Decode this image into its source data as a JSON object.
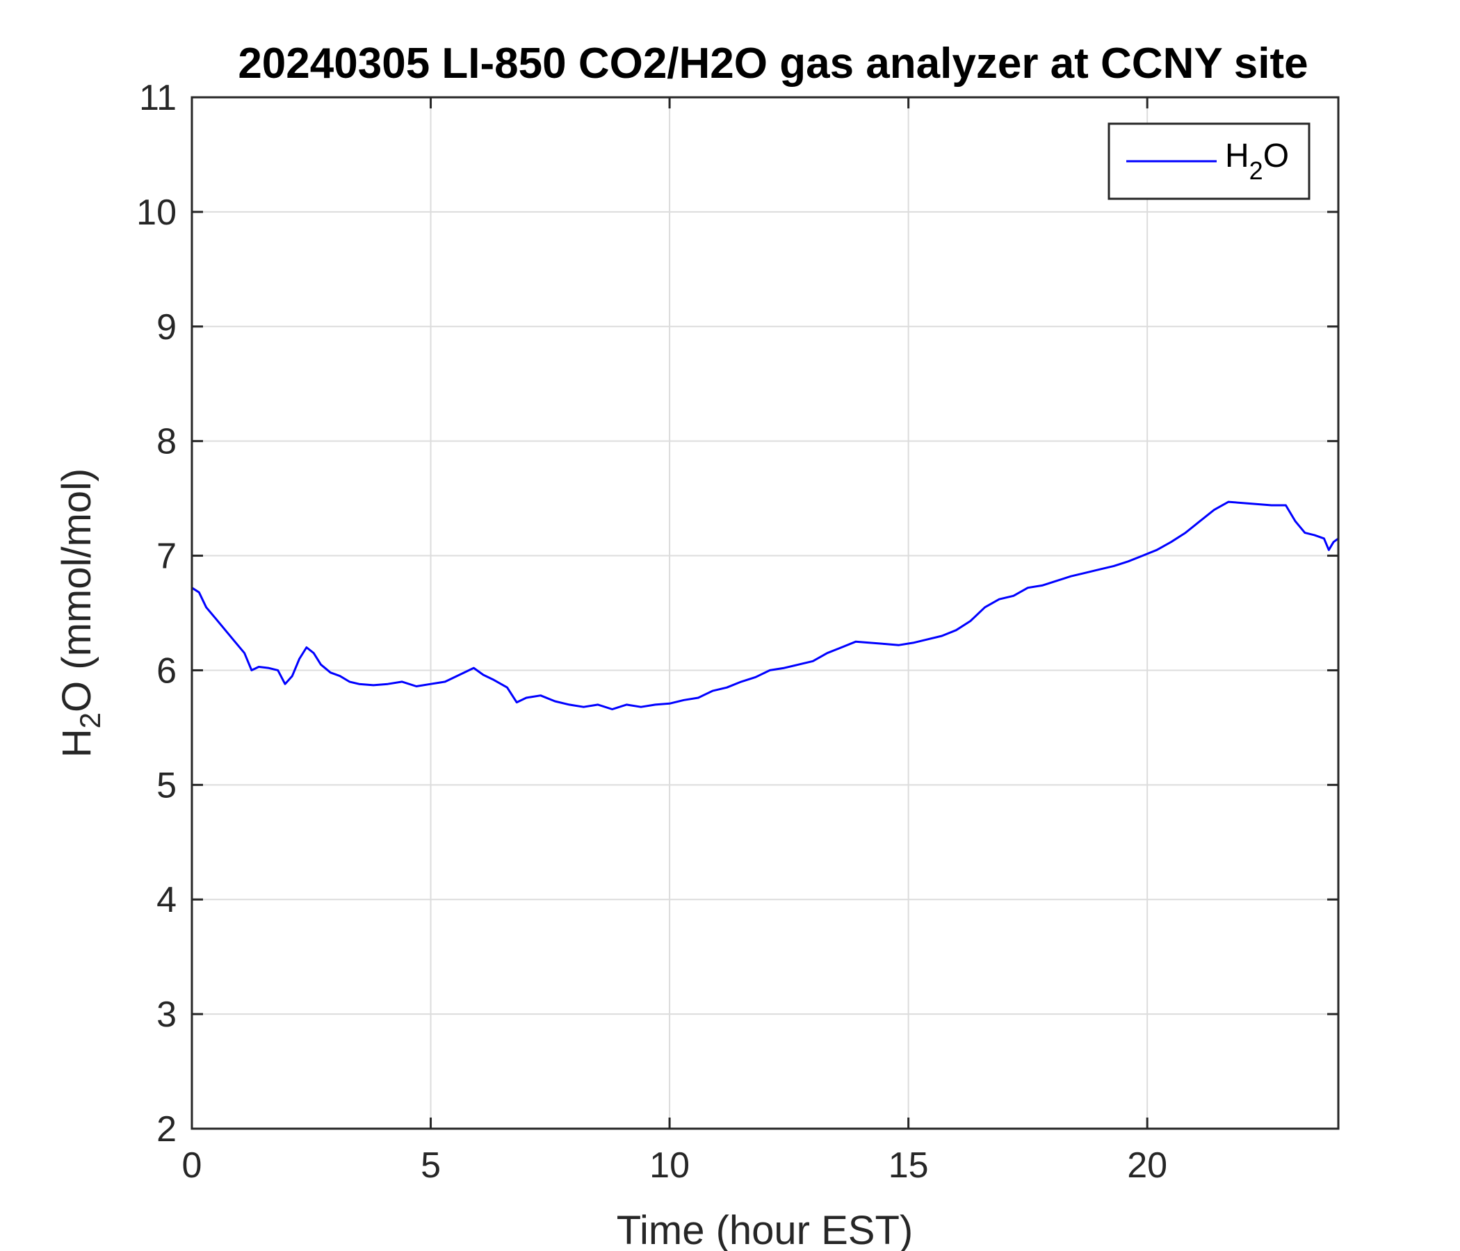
{
  "chart_data": {
    "type": "line",
    "title": "20240305 LI-850 CO2/H2O gas analyzer at CCNY site",
    "xlabel": "Time (hour EST)",
    "ylabel": {
      "main": "H",
      "sub": "2",
      "rest": "O (mmol/mol)"
    },
    "xlim": [
      0,
      24
    ],
    "ylim": [
      2,
      11
    ],
    "xticks": [
      0,
      5,
      10,
      15,
      20
    ],
    "yticks": [
      2,
      3,
      4,
      5,
      6,
      7,
      8,
      9,
      10,
      11
    ],
    "grid": true,
    "legend_position": "top-right",
    "series": [
      {
        "name": {
          "main": "H",
          "sub": "2",
          "rest": "O"
        },
        "color": "#0000ff",
        "x": [
          0,
          0.15,
          0.3,
          0.5,
          0.7,
          0.9,
          1.1,
          1.25,
          1.4,
          1.6,
          1.8,
          1.95,
          2.1,
          2.25,
          2.4,
          2.55,
          2.7,
          2.9,
          3.1,
          3.3,
          3.5,
          3.8,
          4.1,
          4.4,
          4.7,
          5.0,
          5.3,
          5.6,
          5.9,
          6.1,
          6.3,
          6.6,
          6.8,
          7.0,
          7.3,
          7.6,
          7.9,
          8.2,
          8.5,
          8.8,
          9.1,
          9.4,
          9.7,
          10.0,
          10.3,
          10.6,
          10.9,
          11.2,
          11.5,
          11.8,
          12.1,
          12.4,
          12.7,
          13.0,
          13.3,
          13.6,
          13.9,
          14.2,
          14.5,
          14.8,
          15.1,
          15.4,
          15.7,
          16.0,
          16.3,
          16.6,
          16.9,
          17.2,
          17.5,
          17.8,
          18.1,
          18.4,
          18.7,
          19.0,
          19.3,
          19.6,
          19.9,
          20.2,
          20.5,
          20.8,
          21.1,
          21.4,
          21.7,
          22.0,
          22.3,
          22.6,
          22.9,
          23.1,
          23.3,
          23.5,
          23.7,
          23.8,
          23.9,
          24.0
        ],
        "y": [
          6.72,
          6.68,
          6.55,
          6.45,
          6.35,
          6.25,
          6.15,
          6.0,
          6.03,
          6.02,
          6.0,
          5.88,
          5.95,
          6.1,
          6.2,
          6.15,
          6.05,
          5.98,
          5.95,
          5.9,
          5.88,
          5.87,
          5.88,
          5.9,
          5.86,
          5.88,
          5.9,
          5.96,
          6.02,
          5.96,
          5.92,
          5.85,
          5.72,
          5.76,
          5.78,
          5.73,
          5.7,
          5.68,
          5.7,
          5.66,
          5.7,
          5.68,
          5.7,
          5.71,
          5.74,
          5.76,
          5.82,
          5.85,
          5.9,
          5.94,
          6.0,
          6.02,
          6.05,
          6.08,
          6.15,
          6.2,
          6.25,
          6.24,
          6.23,
          6.22,
          6.24,
          6.27,
          6.3,
          6.35,
          6.43,
          6.55,
          6.62,
          6.65,
          6.72,
          6.74,
          6.78,
          6.82,
          6.85,
          6.88,
          6.91,
          6.95,
          7.0,
          7.05,
          7.12,
          7.2,
          7.3,
          7.4,
          7.47,
          7.46,
          7.45,
          7.44,
          7.44,
          7.3,
          7.2,
          7.18,
          7.15,
          7.05,
          7.12,
          7.15
        ]
      }
    ]
  }
}
